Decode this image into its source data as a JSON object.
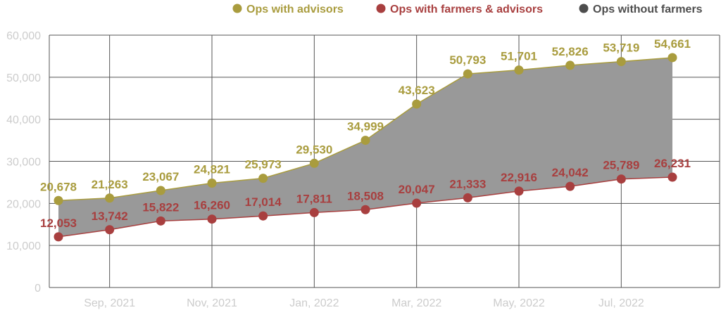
{
  "chart_data": {
    "type": "line",
    "x": [
      "Aug, 2021",
      "Sep, 2021",
      "Oct, 2021",
      "Nov, 2021",
      "Dec, 2021",
      "Jan, 2022",
      "Feb, 2022",
      "Mar, 2022",
      "Apr, 2022",
      "May, 2022",
      "Jun, 2022",
      "Jul, 2022",
      "Aug, 2022"
    ],
    "x_tick_labels": [
      "",
      "Sep, 2021",
      "",
      "Nov, 2021",
      "",
      "Jan, 2022",
      "",
      "Mar, 2022",
      "",
      "May, 2022",
      "",
      "Jul, 2022",
      ""
    ],
    "series": [
      {
        "name": "Ops with advisors",
        "color": "#a99c3e",
        "values": [
          20678,
          21263,
          23067,
          24821,
          25973,
          29530,
          34999,
          43623,
          50793,
          51701,
          52826,
          53719,
          54661
        ],
        "labels": [
          "20,678",
          "21,263",
          "23,067",
          "24,821",
          "25,973",
          "29,530",
          "34,999",
          "43,623",
          "50,793",
          "51,701",
          "52,826",
          "53,719",
          "54,661"
        ]
      },
      {
        "name": "Ops with farmers & advisors",
        "color": "#a83f3f",
        "values": [
          12053,
          13742,
          15822,
          16260,
          17014,
          17811,
          18508,
          20047,
          21333,
          22916,
          24042,
          25789,
          26231
        ],
        "labels": [
          "12,053",
          "13,742",
          "15,822",
          "16,260",
          "17,014",
          "17,811",
          "18,508",
          "20,047",
          "21,333",
          "22,916",
          "24,042",
          "25,789",
          "26,231"
        ]
      },
      {
        "name": "Ops without  farmers",
        "color": "#4d4d4d",
        "area_fill": "#999999"
      }
    ],
    "y_ticks": [
      0,
      10000,
      20000,
      30000,
      40000,
      50000,
      60000
    ],
    "y_tick_labels": [
      "0",
      "10,000",
      "20,000",
      "30,000",
      "40,000",
      "50,000",
      "60,000"
    ],
    "ylim": [
      0,
      60000
    ],
    "grid": true,
    "legend_position": "top-right"
  }
}
